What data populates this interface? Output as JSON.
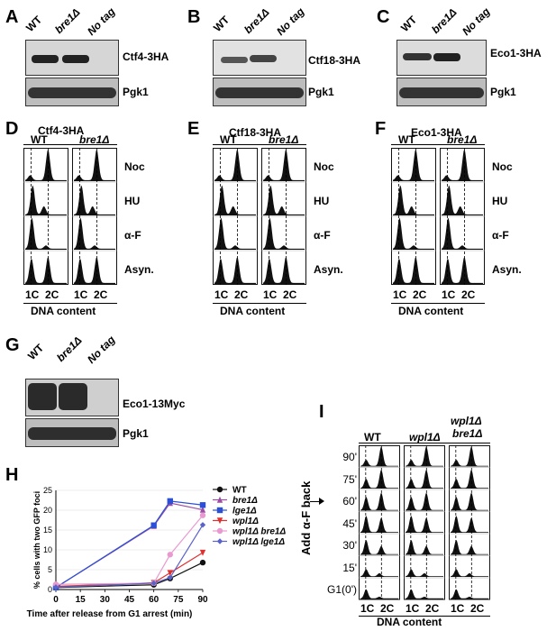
{
  "panels": {
    "A": {
      "letter": "A",
      "lanes": [
        "WT",
        "bre1Δ",
        "No tag"
      ],
      "bands": [
        "Ctf4-3HA",
        "Pgk1"
      ]
    },
    "B": {
      "letter": "B",
      "lanes": [
        "WT",
        "bre1Δ",
        "No tag"
      ],
      "bands": [
        "Ctf18-3HA",
        "Pgk1"
      ]
    },
    "C": {
      "letter": "C",
      "lanes": [
        "WT",
        "bre1Δ",
        "No tag"
      ],
      "bands": [
        "Eco1-3HA",
        "Pgk1"
      ]
    },
    "D": {
      "letter": "D",
      "title": "Ctf4-3HA",
      "cols": [
        "WT",
        "bre1Δ"
      ]
    },
    "E": {
      "letter": "E",
      "title": "Ctf18-3HA",
      "cols": [
        "WT",
        "bre1Δ"
      ]
    },
    "F": {
      "letter": "F",
      "title": "Eco1-3HA",
      "cols": [
        "WT",
        "bre1Δ"
      ]
    },
    "G": {
      "letter": "G",
      "lanes": [
        "WT",
        "bre1Δ",
        "No tag"
      ],
      "bands": [
        "Eco1-13Myc",
        "Pgk1"
      ]
    },
    "H": {
      "letter": "H"
    },
    "I": {
      "letter": "I",
      "cols": [
        "WT",
        "wpl1Δ",
        "wpl1Δ bre1Δ"
      ],
      "side_label": "Add α-F back",
      "times": [
        "90'",
        "75'",
        "60'",
        "45'",
        "30'",
        "15'",
        "G1(0')"
      ]
    }
  },
  "flow_conditions": [
    "Noc",
    "HU",
    "α-F",
    "Asyn."
  ],
  "flow_xticks": [
    "1C",
    "2C"
  ],
  "flow_xlabel": "DNA content",
  "chart_data": {
    "type": "line",
    "ylabel": "% cells with two GFP foci",
    "xlabel": "Time after release from G1 arrest (min)",
    "xticks": [
      0,
      15,
      30,
      45,
      60,
      75,
      90
    ],
    "yticks": [
      0,
      5,
      10,
      15,
      20,
      25
    ],
    "xlim": [
      0,
      90
    ],
    "ylim": [
      0,
      25
    ],
    "x": [
      0,
      60,
      70,
      90
    ],
    "series": [
      {
        "name": "WT",
        "color": "#111111",
        "marker": "circle",
        "values": [
          0.5,
          1.2,
          2.8,
          6.8
        ]
      },
      {
        "name": "bre1Δ",
        "color": "#9b4fa3",
        "marker": "triangle",
        "values": [
          0.5,
          16.0,
          21.8,
          20.1
        ]
      },
      {
        "name": "lge1Δ",
        "color": "#2b4fd6",
        "marker": "square",
        "values": [
          0.5,
          16.2,
          22.3,
          21.3
        ]
      },
      {
        "name": "wpl1Δ",
        "color": "#e03030",
        "marker": "triangle-down",
        "values": [
          0.8,
          1.7,
          4.2,
          9.3
        ]
      },
      {
        "name": "wpl1Δ bre1Δ",
        "color": "#e89ad0",
        "marker": "circle",
        "values": [
          1.3,
          1.6,
          8.8,
          18.7
        ]
      },
      {
        "name": "wpl1Δ lge1Δ",
        "color": "#5a63c8",
        "marker": "diamond",
        "values": [
          0.6,
          1.6,
          3.0,
          16.3
        ]
      }
    ]
  }
}
